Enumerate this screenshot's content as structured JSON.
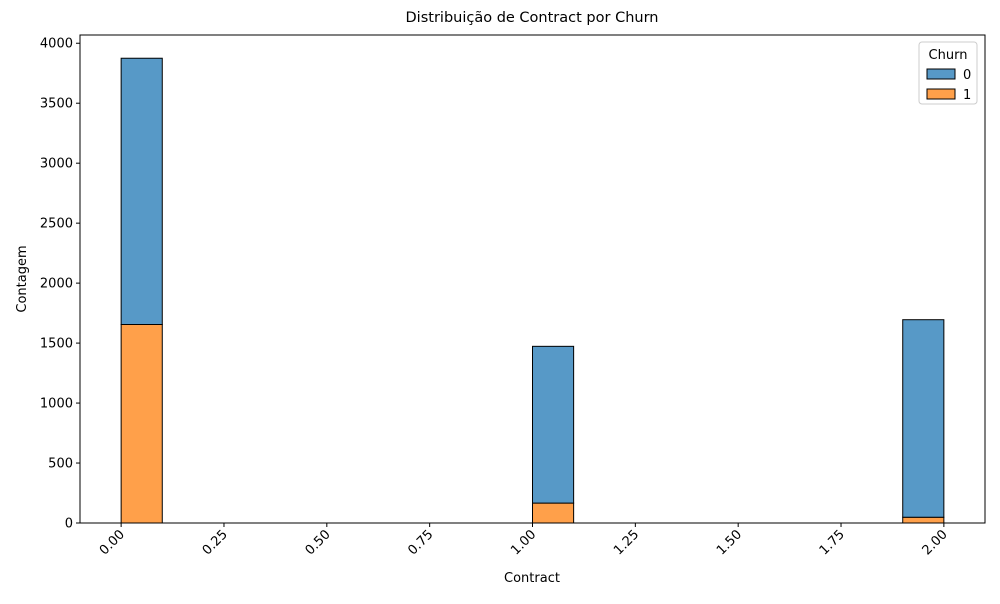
{
  "chart_data": {
    "type": "histogram",
    "title": "Distribuição de Contract por Churn",
    "x_label": "Contract",
    "y_label": "Contagem",
    "bins": [
      0,
      0.1,
      0.2,
      0.3,
      0.4,
      0.5,
      0.6,
      0.7,
      0.8,
      0.9,
      1.0,
      1.1,
      1.2,
      1.3,
      1.4,
      1.5,
      1.6,
      1.7,
      1.8,
      1.9,
      2.0
    ],
    "series": [
      {
        "name": "0",
        "color": "#5799c7",
        "values": [
          2220,
          0,
          0,
          0,
          0,
          0,
          0,
          0,
          0,
          0,
          1307,
          0,
          0,
          0,
          0,
          0,
          0,
          0,
          0,
          1647
        ]
      },
      {
        "name": "1",
        "color": "#ffa04a",
        "values": [
          1655,
          0,
          0,
          0,
          0,
          0,
          0,
          0,
          0,
          0,
          166,
          0,
          0,
          0,
          0,
          0,
          0,
          0,
          0,
          48
        ]
      }
    ],
    "stacked": true,
    "legend_title": "Churn",
    "legend_position": "upper right",
    "xlim": [
      -0.1,
      2.1
    ],
    "xticks": [
      {
        "value": 0,
        "label": "0.00"
      },
      {
        "value": 0.25,
        "label": "0.25"
      },
      {
        "value": 0.5,
        "label": "0.50"
      },
      {
        "value": 0.75,
        "label": "0.75"
      },
      {
        "value": 1,
        "label": "1.00"
      },
      {
        "value": 1.25,
        "label": "1.25"
      },
      {
        "value": 1.5,
        "label": "1.50"
      },
      {
        "value": 1.75,
        "label": "1.75"
      },
      {
        "value": 2,
        "label": "2.00"
      }
    ],
    "ylim": [
      0,
      4068.75
    ],
    "yticks": [
      0,
      500,
      1000,
      1500,
      2000,
      2500,
      3000,
      3500,
      4000
    ]
  }
}
